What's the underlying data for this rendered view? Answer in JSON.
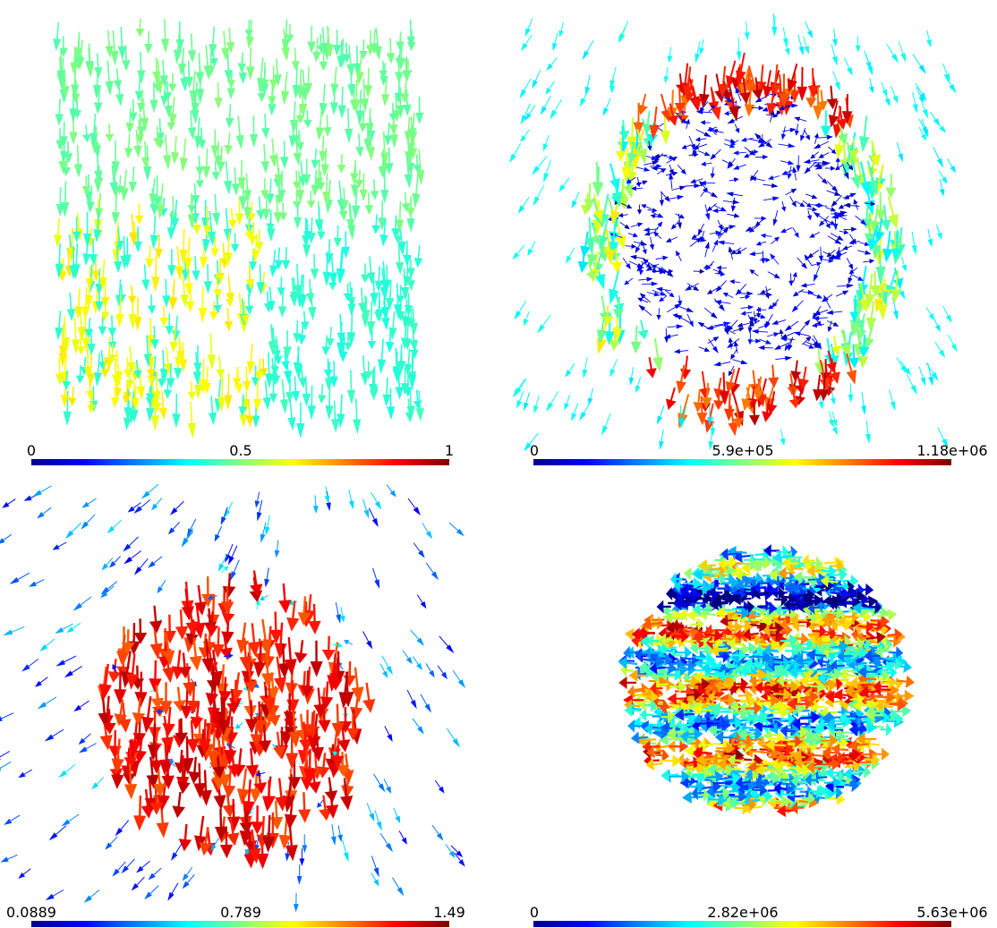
{
  "panels": [
    {
      "colorbar": {
        "min": "0",
        "mid": "0.5",
        "max": "1"
      }
    },
    {
      "colorbar": {
        "min": "0",
        "mid": "5.9e+05",
        "max": "1.18e+06"
      }
    },
    {
      "colorbar": {
        "min": "0.0889",
        "mid": "0.789",
        "max": "1.49"
      }
    },
    {
      "colorbar": {
        "min": "0",
        "mid": "2.82e+06",
        "max": "5.63e+06"
      }
    }
  ]
}
